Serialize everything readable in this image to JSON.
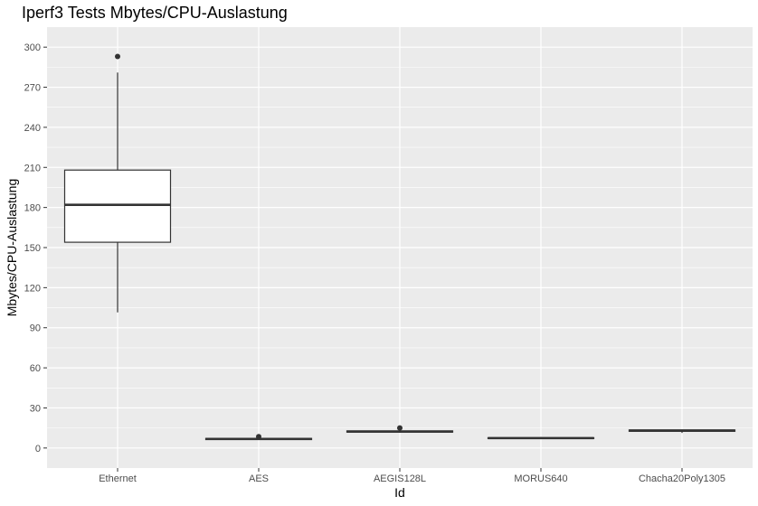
{
  "chart_data": {
    "type": "boxplot",
    "title": "Iperf3 Tests Mbytes/CPU-Auslastung",
    "xlabel": "Id",
    "ylabel": "Mbytes/CPU-Auslastung",
    "ylim": [
      -15,
      315
    ],
    "yticks": [
      0,
      30,
      60,
      90,
      120,
      150,
      180,
      210,
      240,
      270,
      300
    ],
    "yticks_minor": [
      15,
      45,
      75,
      105,
      135,
      165,
      195,
      225,
      255,
      285
    ],
    "grid": true,
    "legend": "none",
    "colors": {
      "panel": "#ebebeb",
      "grid": "#ffffff",
      "box_fill": "#ffffff",
      "box_line": "#333333",
      "tick_text": "#4d4d4d"
    },
    "categories": [
      "Ethernet",
      "AES",
      "AEGIS128L",
      "MORUS640",
      "Chacha20Poly1305"
    ],
    "boxes": [
      {
        "category": "Ethernet",
        "whisker_low": 101.5,
        "q1": 154.0,
        "median": 182.0,
        "q3": 208.0,
        "whisker_high": 281.0,
        "outliers": [
          293.0
        ]
      },
      {
        "category": "AES",
        "whisker_low": 6.0,
        "q1": 6.3,
        "median": 6.8,
        "q3": 7.2,
        "whisker_high": 7.5,
        "outliers": [
          8.5
        ]
      },
      {
        "category": "AEGIS128L",
        "whisker_low": 11.5,
        "q1": 11.9,
        "median": 12.3,
        "q3": 12.8,
        "whisker_high": 13.2,
        "outliers": [
          15.0
        ]
      },
      {
        "category": "MORUS640",
        "whisker_low": 6.8,
        "q1": 7.1,
        "median": 7.4,
        "q3": 7.7,
        "whisker_high": 8.2,
        "outliers": []
      },
      {
        "category": "Chacha20Poly1305",
        "whisker_low": 11.3,
        "q1": 12.5,
        "median": 13.0,
        "q3": 13.5,
        "whisker_high": 13.8,
        "outliers": []
      }
    ]
  }
}
